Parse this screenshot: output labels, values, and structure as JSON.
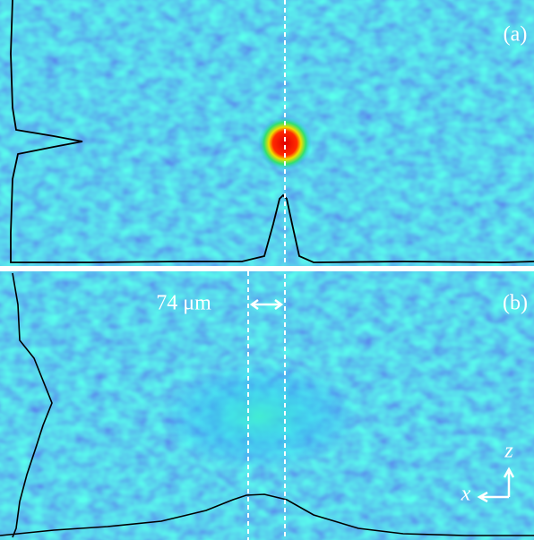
{
  "panels": [
    {
      "label": "(a)"
    },
    {
      "label": "(b)",
      "scale_label": "74 μm"
    }
  ],
  "axes": {
    "z": "z",
    "x": "x"
  }
}
